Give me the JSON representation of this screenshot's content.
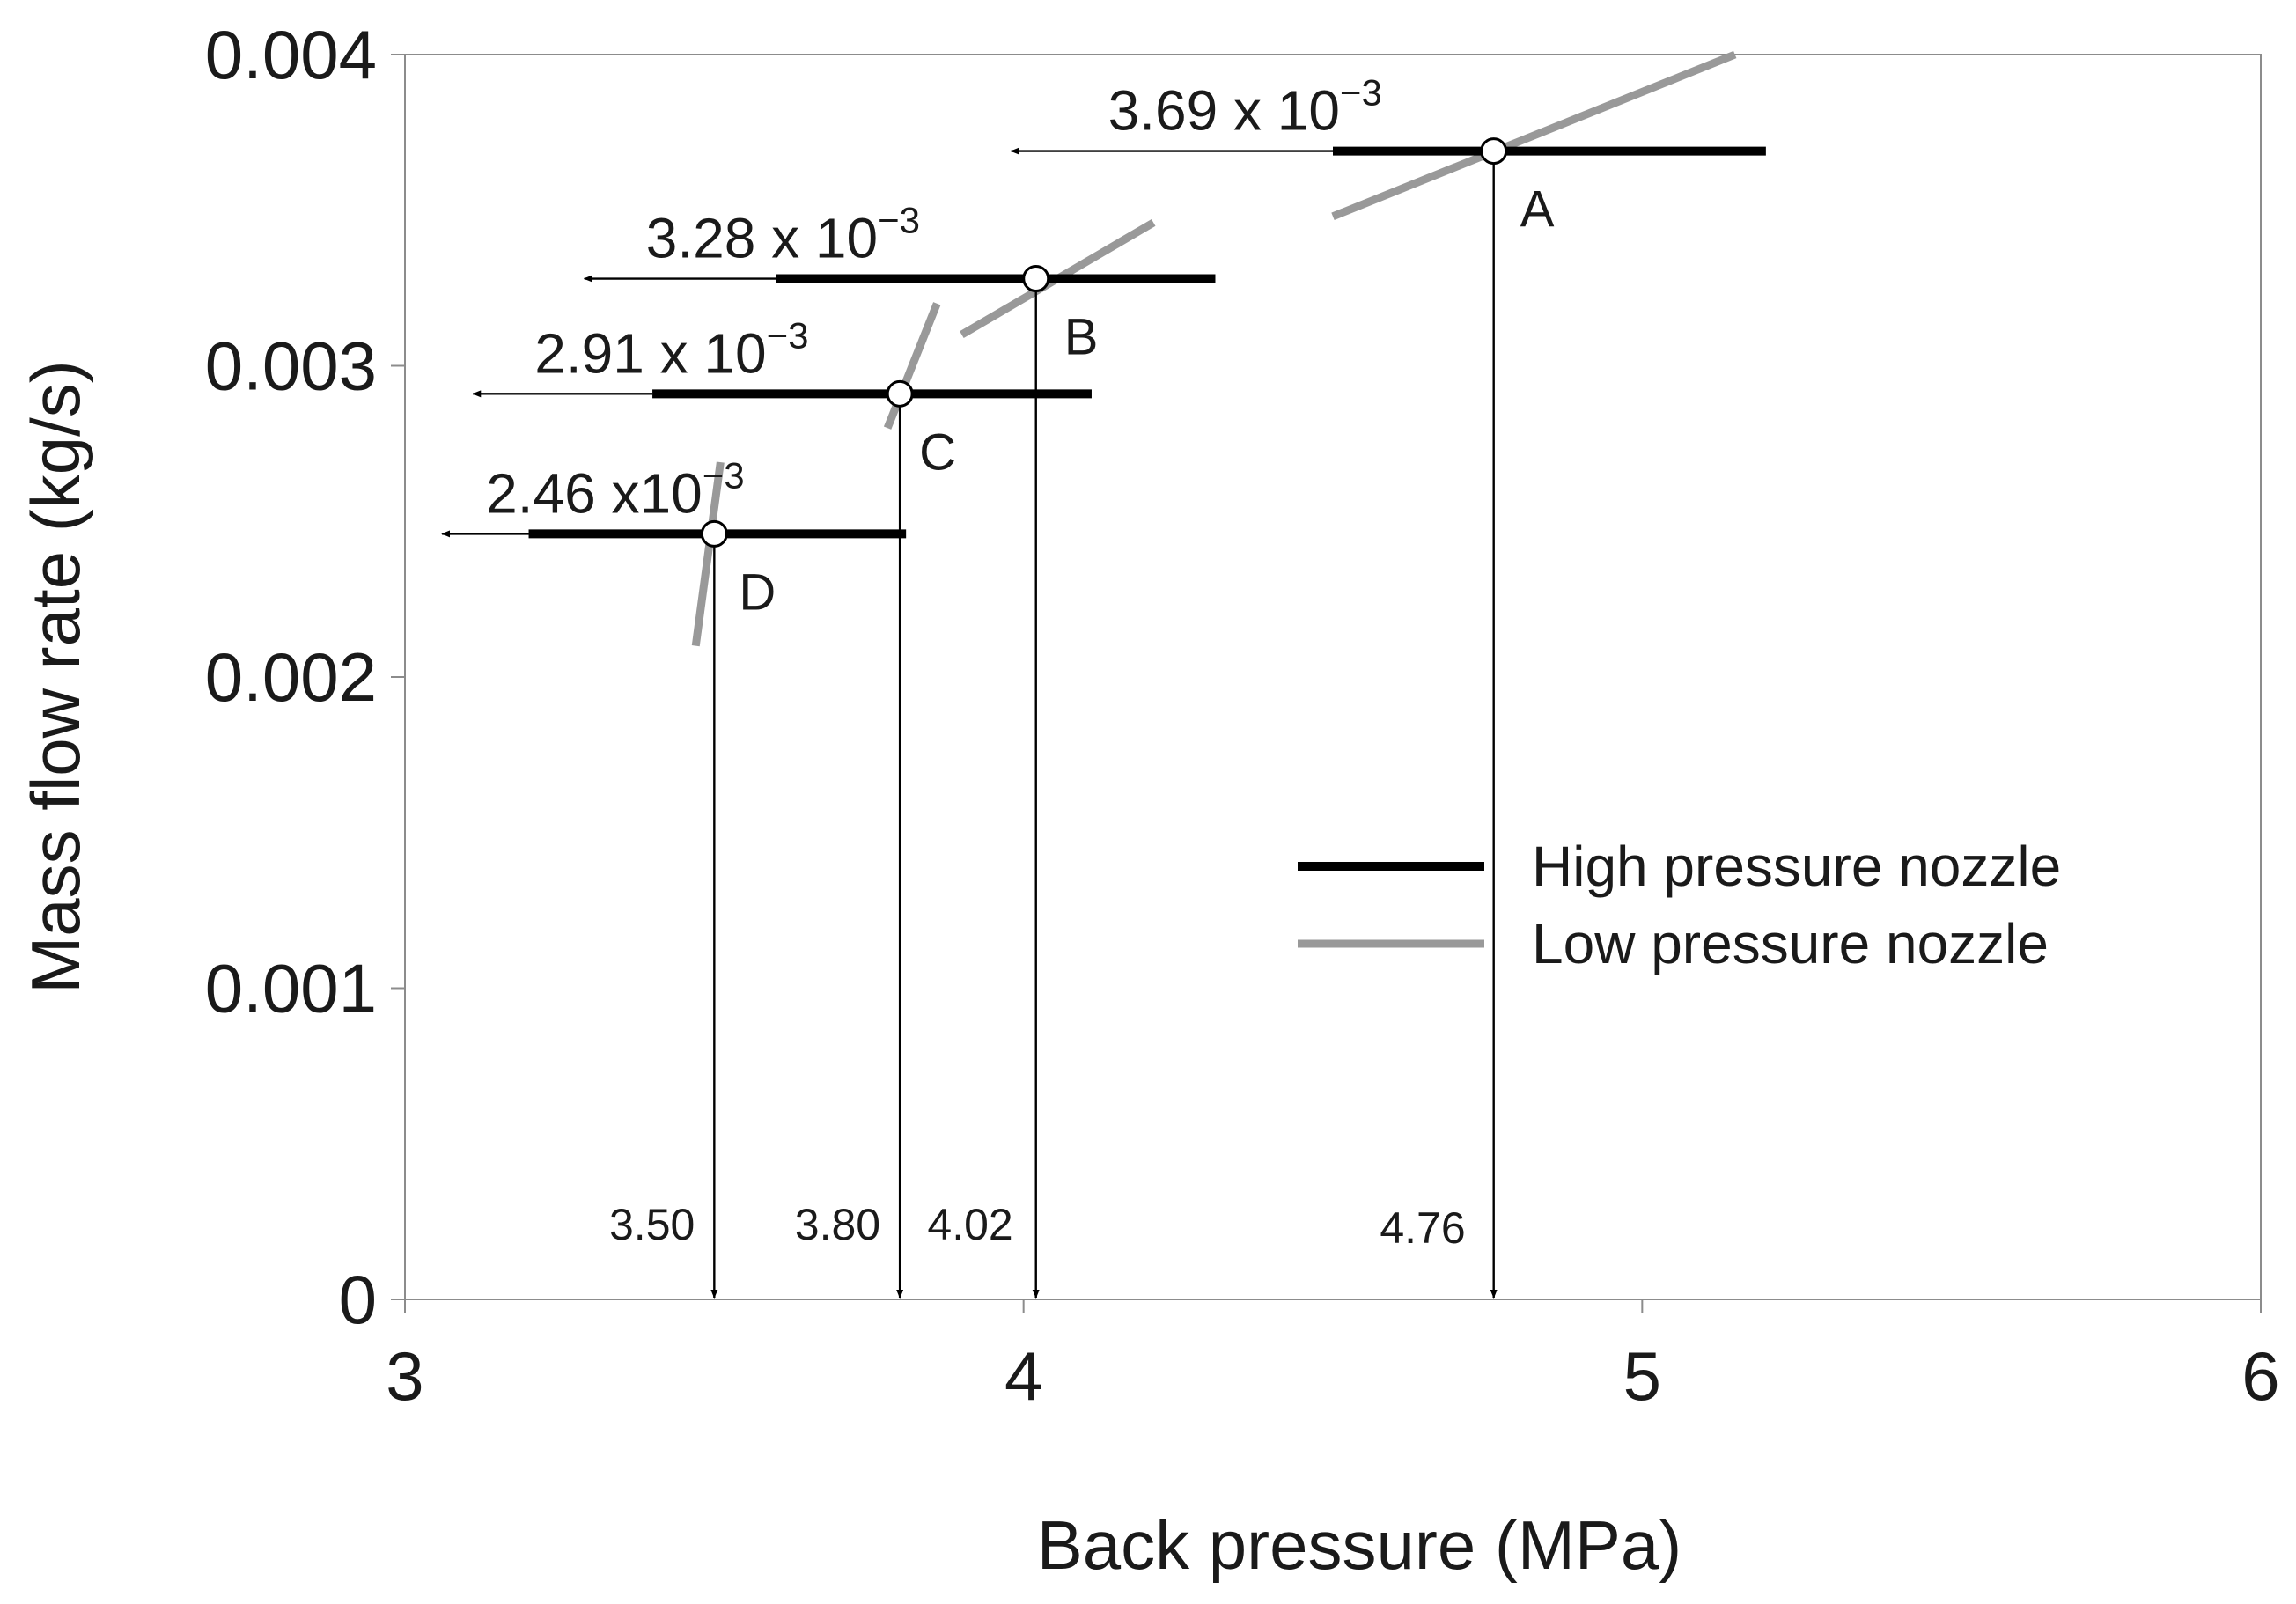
{
  "chart_data": {
    "type": "line",
    "xlabel": "Back pressure (MPa)",
    "ylabel": "Mass flow rate (kg/s)",
    "xlim": [
      3,
      6
    ],
    "ylim": [
      0,
      0.004
    ],
    "grid": false,
    "legend_position": "center-right",
    "x_ticks": [
      {
        "value": 3,
        "label": "3"
      },
      {
        "value": 4,
        "label": "4"
      },
      {
        "value": 5,
        "label": "5"
      },
      {
        "value": 6,
        "label": "6"
      }
    ],
    "y_ticks": [
      {
        "value": 0,
        "label": "0"
      },
      {
        "value": 0.001,
        "label": "0.001"
      },
      {
        "value": 0.002,
        "label": "0.002"
      },
      {
        "value": 0.003,
        "label": "0.003"
      },
      {
        "value": 0.004,
        "label": "0.004"
      }
    ],
    "series": [
      {
        "name": "High pressure nozzle",
        "color": "#000000",
        "segments": [
          {
            "point": "A",
            "x": [
              4.5,
              5.2
            ],
            "y": [
              0.00369,
              0.00369
            ]
          },
          {
            "point": "B",
            "x": [
              3.6,
              4.31
            ],
            "y": [
              0.00328,
              0.00328
            ]
          },
          {
            "point": "C",
            "x": [
              3.4,
              4.11
            ],
            "y": [
              0.00291,
              0.00291
            ]
          },
          {
            "point": "D",
            "x": [
              3.2,
              3.81
            ],
            "y": [
              0.00246,
              0.00246
            ]
          }
        ]
      },
      {
        "name": "Low pressure nozzle",
        "color": "#999999",
        "segments": [
          {
            "point": "A",
            "x": [
              4.5,
              5.15
            ],
            "y": [
              0.00348,
              0.004
            ]
          },
          {
            "point": "B",
            "x": [
              3.9,
              4.21
            ],
            "y": [
              0.0031,
              0.00346
            ]
          },
          {
            "point": "C",
            "x": [
              3.78,
              3.86
            ],
            "y": [
              0.0028,
              0.0032
            ]
          },
          {
            "point": "D",
            "x": [
              3.47,
              3.51
            ],
            "y": [
              0.0021,
              0.00269
            ]
          }
        ]
      }
    ],
    "operating_points": [
      {
        "label": "A",
        "pressure": 4.76,
        "flow": 0.00369,
        "pressure_text": "4.76",
        "rate_base": "3.69 x 10",
        "rate_exp": "−3",
        "arrow_end_x": 3.98
      },
      {
        "label": "B",
        "pressure": 4.02,
        "flow": 0.00328,
        "pressure_text": "4.02",
        "rate_base": "3.28 x 10",
        "rate_exp": "−3",
        "arrow_end_x": 3.29
      },
      {
        "label": "C",
        "pressure": 3.8,
        "flow": 0.00291,
        "pressure_text": "3.80",
        "rate_base": "2.91 x 10",
        "rate_exp": "−3",
        "arrow_end_x": 3.11
      },
      {
        "label": "D",
        "pressure": 3.5,
        "flow": 0.00246,
        "pressure_text": "3.50",
        "rate_base": "2.46 x10",
        "rate_exp": "−3",
        "arrow_end_x": 3.06
      }
    ]
  }
}
